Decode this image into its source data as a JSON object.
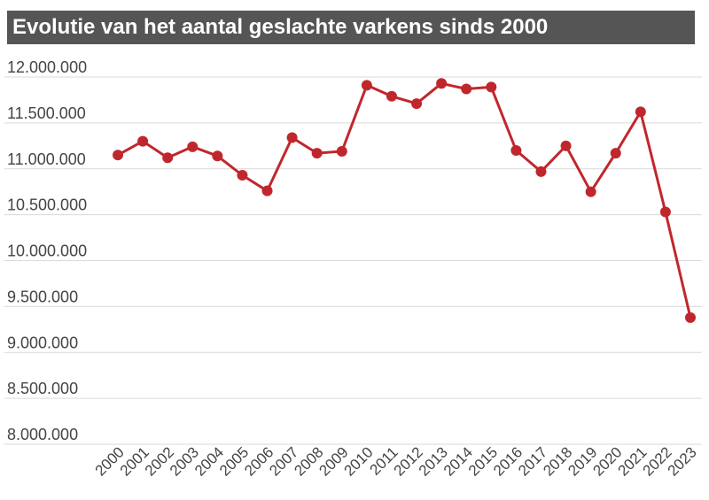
{
  "chart_data": {
    "type": "line",
    "title": "Evolutie van het aantal geslachte varkens sinds 2000",
    "xlabel": "",
    "ylabel": "",
    "ylim": [
      8000000,
      12000000
    ],
    "y_ticks": [
      8000000,
      8500000,
      9000000,
      9500000,
      10000000,
      10500000,
      11000000,
      11500000,
      12000000
    ],
    "y_tick_labels": [
      "8.000.000",
      "8.500.000",
      "9.000.000",
      "9.500.000",
      "10.000.000",
      "10.500.000",
      "11.000.000",
      "11.500.000",
      "12.000.000"
    ],
    "categories": [
      "2000",
      "2001",
      "2002",
      "2003",
      "2004",
      "2005",
      "2006",
      "2007",
      "2008",
      "2009",
      "2010",
      "2011",
      "2012",
      "2013",
      "2014",
      "2015",
      "2016",
      "2017",
      "2018",
      "2019",
      "2020",
      "2021",
      "2022",
      "2023"
    ],
    "series": [
      {
        "values": [
          11150000,
          11300000,
          11120000,
          11240000,
          11140000,
          10930000,
          10760000,
          11340000,
          11170000,
          11190000,
          11910000,
          11790000,
          11710000,
          11930000,
          11870000,
          11890000,
          11200000,
          10970000,
          11250000,
          10750000,
          11170000,
          11620000,
          10530000,
          9380000
        ]
      }
    ],
    "grid": true,
    "legend": "none",
    "colors": {
      "line": "#C0272D",
      "grid": "#d9d9d9",
      "title_bg": "#555555",
      "title_text": "#ffffff",
      "tick_text": "#444444"
    }
  }
}
